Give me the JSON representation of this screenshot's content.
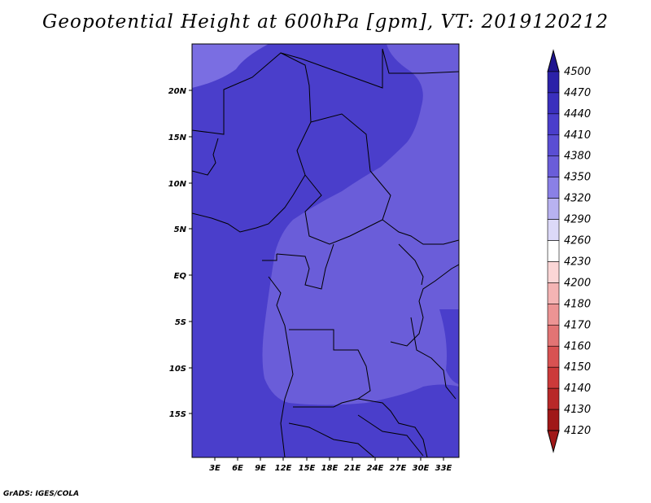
{
  "title": "Geopotential Height at 600hPa [gpm], VT: 2019120212",
  "credit": "GrADS: IGES/COLA",
  "map": {
    "lon_ticks": [
      "3E",
      "6E",
      "9E",
      "12E",
      "15E",
      "18E",
      "21E",
      "24E",
      "27E",
      "30E",
      "33E"
    ],
    "lat_ticks": [
      "20N",
      "15N",
      "10N",
      "5N",
      "EQ",
      "5S",
      "10S",
      "15S"
    ],
    "regions": [
      {
        "name": "lower-band",
        "color": "#4a3ecb"
      },
      {
        "name": "mid-band",
        "color": "#6a5dd9"
      },
      {
        "name": "high-band",
        "color": "#7a6ee2"
      }
    ]
  },
  "colorbar": {
    "levels": [
      "4500",
      "4470",
      "4440",
      "4410",
      "4380",
      "4350",
      "4320",
      "4290",
      "4260",
      "4230",
      "4200",
      "4180",
      "4170",
      "4160",
      "4150",
      "4140",
      "4130",
      "4120"
    ],
    "colors": [
      "#1f158f",
      "#2b21a8",
      "#3a2fbd",
      "#4a3ecb",
      "#5a4ed3",
      "#6a5dd9",
      "#8a80e6",
      "#b8b2f0",
      "#dcd9f8",
      "#ffffff",
      "#fbd6d6",
      "#f4b4b4",
      "#ec9494",
      "#e27474",
      "#d85252",
      "#cc3a3a",
      "#b82828",
      "#a01818"
    ]
  }
}
